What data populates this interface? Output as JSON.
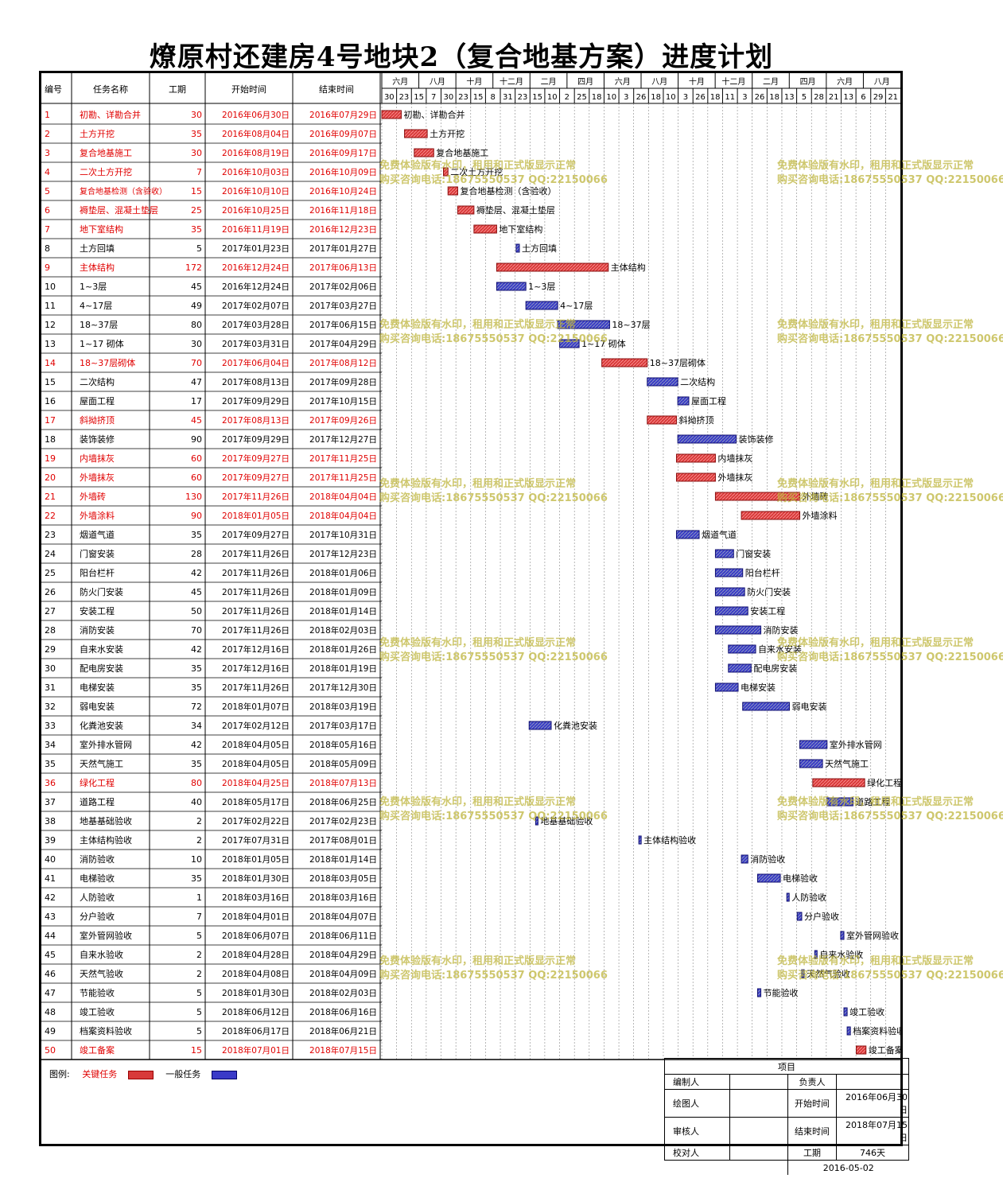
{
  "title": "燎原村还建房4号地块2（复合地基方案）进度计划",
  "colors": {
    "critical": "#d83a3a",
    "normal": "#3a3ac8",
    "critical_text": "#e00000",
    "normal_text": "#000000"
  },
  "headers": {
    "id": "编号",
    "name": "任务名称",
    "duration": "工期",
    "start": "开始时间",
    "end": "结束时间"
  },
  "timeline": {
    "months": [
      "六月",
      "八月",
      "十月",
      "十二月",
      "二月",
      "四月",
      "六月",
      "八月",
      "十月",
      "十二月",
      "二月",
      "四月",
      "六月",
      "八月"
    ],
    "days": [
      "30",
      "23",
      "15",
      "7",
      "30",
      "23",
      "15",
      "8",
      "31",
      "23",
      "15",
      "10",
      "2",
      "25",
      "18",
      "10",
      "3",
      "26",
      "18",
      "10",
      "3",
      "26",
      "18",
      "11",
      "3",
      "26",
      "18",
      "13",
      "5",
      "28",
      "21",
      "13",
      "6",
      "29",
      "21"
    ]
  },
  "chart_data": {
    "type": "gantt",
    "title": "燎原村还建房4号地块2（复合地基方案）进度计划",
    "xlim": [
      "2016-06-30",
      "2018-09-07"
    ],
    "tasks": [
      {
        "id": "1",
        "name": "初勘、详勘合并",
        "duration": "30",
        "start": "2016年06月30日",
        "end": "2016年07月29日",
        "critical": true,
        "label": "初勘、详勘合并"
      },
      {
        "id": "2",
        "name": "土方开挖",
        "duration": "35",
        "start": "2016年08月04日",
        "end": "2016年09月07日",
        "critical": true,
        "label": "土方开挖"
      },
      {
        "id": "3",
        "name": "复合地基施工",
        "duration": "30",
        "start": "2016年08月19日",
        "end": "2016年09月17日",
        "critical": true,
        "label": "复合地基施工"
      },
      {
        "id": "4",
        "name": "二次土方开挖",
        "duration": "7",
        "start": "2016年10月03日",
        "end": "2016年10月09日",
        "critical": true,
        "label": "二次土方开挖"
      },
      {
        "id": "5",
        "name": "复合地基检测（含验收）",
        "duration": "15",
        "start": "2016年10月10日",
        "end": "2016年10月24日",
        "critical": true,
        "label": "复合地基检测（含验收）"
      },
      {
        "id": "6",
        "name": "褥垫层、混凝土垫层",
        "duration": "25",
        "start": "2016年10月25日",
        "end": "2016年11月18日",
        "critical": true,
        "label": "褥垫层、混凝土垫层"
      },
      {
        "id": "7",
        "name": "地下室结构",
        "duration": "35",
        "start": "2016年11月19日",
        "end": "2016年12月23日",
        "critical": true,
        "label": "地下室结构"
      },
      {
        "id": "8",
        "name": "土方回填",
        "duration": "5",
        "start": "2017年01月23日",
        "end": "2017年01月27日",
        "critical": false,
        "label": "土方回填"
      },
      {
        "id": "9",
        "name": "主体结构",
        "duration": "172",
        "start": "2016年12月24日",
        "end": "2017年06月13日",
        "critical": true,
        "label": "主体结构"
      },
      {
        "id": "10",
        "name": "1~3层",
        "duration": "45",
        "start": "2016年12月24日",
        "end": "2017年02月06日",
        "critical": false,
        "label": "1~3层"
      },
      {
        "id": "11",
        "name": "4~17层",
        "duration": "49",
        "start": "2017年02月07日",
        "end": "2017年03月27日",
        "critical": false,
        "label": "4~17层"
      },
      {
        "id": "12",
        "name": "18~37层",
        "duration": "80",
        "start": "2017年03月28日",
        "end": "2017年06月15日",
        "critical": false,
        "label": "18~37层"
      },
      {
        "id": "13",
        "name": "1~17 砌体",
        "duration": "30",
        "start": "2017年03月31日",
        "end": "2017年04月29日",
        "critical": false,
        "label": "1~17 砌体"
      },
      {
        "id": "14",
        "name": "18~37层砌体",
        "duration": "70",
        "start": "2017年06月04日",
        "end": "2017年08月12日",
        "critical": true,
        "label": "18~37层砌体"
      },
      {
        "id": "15",
        "name": "二次结构",
        "duration": "47",
        "start": "2017年08月13日",
        "end": "2017年09月28日",
        "critical": false,
        "label": "二次结构"
      },
      {
        "id": "16",
        "name": "屋面工程",
        "duration": "17",
        "start": "2017年09月29日",
        "end": "2017年10月15日",
        "critical": false,
        "label": "屋面工程"
      },
      {
        "id": "17",
        "name": "斜拗挤顶",
        "duration": "45",
        "start": "2017年08月13日",
        "end": "2017年09月26日",
        "critical": true,
        "label": "斜拗挤顶"
      },
      {
        "id": "18",
        "name": "装饰装修",
        "duration": "90",
        "start": "2017年09月29日",
        "end": "2017年12月27日",
        "critical": false,
        "label": "装饰装修"
      },
      {
        "id": "19",
        "name": "内墙抹灰",
        "duration": "60",
        "start": "2017年09月27日",
        "end": "2017年11月25日",
        "critical": true,
        "label": "内墙抹灰"
      },
      {
        "id": "20",
        "name": "外墙抹灰",
        "duration": "60",
        "start": "2017年09月27日",
        "end": "2017年11月25日",
        "critical": true,
        "label": "外墙抹灰"
      },
      {
        "id": "21",
        "name": "外墙砖",
        "duration": "130",
        "start": "2017年11月26日",
        "end": "2018年04月04日",
        "critical": true,
        "label": "外墙砖"
      },
      {
        "id": "22",
        "name": "外墙涂料",
        "duration": "90",
        "start": "2018年01月05日",
        "end": "2018年04月04日",
        "critical": true,
        "label": "外墙涂料"
      },
      {
        "id": "23",
        "name": "烟道气道",
        "duration": "35",
        "start": "2017年09月27日",
        "end": "2017年10月31日",
        "critical": false,
        "label": "烟道气道"
      },
      {
        "id": "24",
        "name": "门窗安装",
        "duration": "28",
        "start": "2017年11月26日",
        "end": "2017年12月23日",
        "critical": false,
        "label": "门窗安装"
      },
      {
        "id": "25",
        "name": "阳台栏杆",
        "duration": "42",
        "start": "2017年11月26日",
        "end": "2018年01月06日",
        "critical": false,
        "label": "阳台栏杆"
      },
      {
        "id": "26",
        "name": "防火门安装",
        "duration": "45",
        "start": "2017年11月26日",
        "end": "2018年01月09日",
        "critical": false,
        "label": "防火门安装"
      },
      {
        "id": "27",
        "name": "安装工程",
        "duration": "50",
        "start": "2017年11月26日",
        "end": "2018年01月14日",
        "critical": false,
        "label": "安装工程"
      },
      {
        "id": "28",
        "name": "消防安装",
        "duration": "70",
        "start": "2017年11月26日",
        "end": "2018年02月03日",
        "critical": false,
        "label": "消防安装"
      },
      {
        "id": "29",
        "name": "自来水安装",
        "duration": "42",
        "start": "2017年12月16日",
        "end": "2018年01月26日",
        "critical": false,
        "label": "自来水安装"
      },
      {
        "id": "30",
        "name": "配电房安装",
        "duration": "35",
        "start": "2017年12月16日",
        "end": "2018年01月19日",
        "critical": false,
        "label": "配电房安装"
      },
      {
        "id": "31",
        "name": "电梯安装",
        "duration": "35",
        "start": "2017年11月26日",
        "end": "2017年12月30日",
        "critical": false,
        "label": "电梯安装"
      },
      {
        "id": "32",
        "name": "弱电安装",
        "duration": "72",
        "start": "2018年01月07日",
        "end": "2018年03月19日",
        "critical": false,
        "label": "弱电安装"
      },
      {
        "id": "33",
        "name": "化粪池安装",
        "duration": "34",
        "start": "2017年02月12日",
        "end": "2017年03月17日",
        "critical": false,
        "label": "化粪池安装"
      },
      {
        "id": "34",
        "name": "室外排水管网",
        "duration": "42",
        "start": "2018年04月05日",
        "end": "2018年05月16日",
        "critical": false,
        "label": "室外排水管网"
      },
      {
        "id": "35",
        "name": "天然气施工",
        "duration": "35",
        "start": "2018年04月05日",
        "end": "2018年05月09日",
        "critical": false,
        "label": "天然气施工"
      },
      {
        "id": "36",
        "name": "绿化工程",
        "duration": "80",
        "start": "2018年04月25日",
        "end": "2018年07月13日",
        "critical": true,
        "label": "绿化工程"
      },
      {
        "id": "37",
        "name": "道路工程",
        "duration": "40",
        "start": "2018年05月17日",
        "end": "2018年06月25日",
        "critical": false,
        "label": "道路工程"
      },
      {
        "id": "38",
        "name": "地基基础验收",
        "duration": "2",
        "start": "2017年02月22日",
        "end": "2017年02月23日",
        "critical": false,
        "label": "地基基础验收"
      },
      {
        "id": "39",
        "name": "主体结构验收",
        "duration": "2",
        "start": "2017年07月31日",
        "end": "2017年08月01日",
        "critical": false,
        "label": "主体结构验收"
      },
      {
        "id": "40",
        "name": "消防验收",
        "duration": "10",
        "start": "2018年01月05日",
        "end": "2018年01月14日",
        "critical": false,
        "label": "消防验收"
      },
      {
        "id": "41",
        "name": "电梯验收",
        "duration": "35",
        "start": "2018年01月30日",
        "end": "2018年03月05日",
        "critical": false,
        "label": "电梯验收"
      },
      {
        "id": "42",
        "name": "人防验收",
        "duration": "1",
        "start": "2018年03月16日",
        "end": "2018年03月16日",
        "critical": false,
        "label": "人防验收"
      },
      {
        "id": "43",
        "name": "分户验收",
        "duration": "7",
        "start": "2018年04月01日",
        "end": "2018年04月07日",
        "critical": false,
        "label": "分户验收"
      },
      {
        "id": "44",
        "name": "室外管网验收",
        "duration": "5",
        "start": "2018年06月07日",
        "end": "2018年06月11日",
        "critical": false,
        "label": "室外管网验收"
      },
      {
        "id": "45",
        "name": "自来水验收",
        "duration": "2",
        "start": "2018年04月28日",
        "end": "2018年04月29日",
        "critical": false,
        "label": "自来水验收"
      },
      {
        "id": "46",
        "name": "天然气验收",
        "duration": "2",
        "start": "2018年04月08日",
        "end": "2018年04月09日",
        "critical": false,
        "label": "天然气验收"
      },
      {
        "id": "47",
        "name": "节能验收",
        "duration": "5",
        "start": "2018年01月30日",
        "end": "2018年02月03日",
        "critical": false,
        "label": "节能验收"
      },
      {
        "id": "48",
        "name": "竣工验收",
        "duration": "5",
        "start": "2018年06月12日",
        "end": "2018年06月16日",
        "critical": false,
        "label": "竣工验收"
      },
      {
        "id": "49",
        "name": "档案资料验收",
        "duration": "5",
        "start": "2018年06月17日",
        "end": "2018年06月21日",
        "critical": false,
        "label": "档案资料验收"
      },
      {
        "id": "50",
        "name": "竣工备案",
        "duration": "15",
        "start": "2018年07月01日",
        "end": "2018年07月15日",
        "critical": true,
        "label": "竣工备案"
      }
    ]
  },
  "legend": {
    "title": "图例:",
    "critical": "关键任务",
    "normal": "一般任务"
  },
  "signoff": {
    "project_label": "项目",
    "rows": [
      {
        "k1": "编制人",
        "v1": "",
        "k2": "负责人",
        "v2": ""
      },
      {
        "k1": "绘图人",
        "v1": "",
        "k2": "开始时间",
        "v2": "2016年06月30日"
      },
      {
        "k1": "审核人",
        "v1": "",
        "k2": "结束时间",
        "v2": "2018年07月15日"
      },
      {
        "k1": "校对人",
        "v1": "",
        "k2": "工期",
        "v2": "746天"
      }
    ],
    "date": "2016-05-02"
  },
  "watermark": {
    "line1": "免费体验版有水印，租用和正式版显示正常",
    "line2": "购买咨询电话:18675550537 QQ:22150066"
  }
}
